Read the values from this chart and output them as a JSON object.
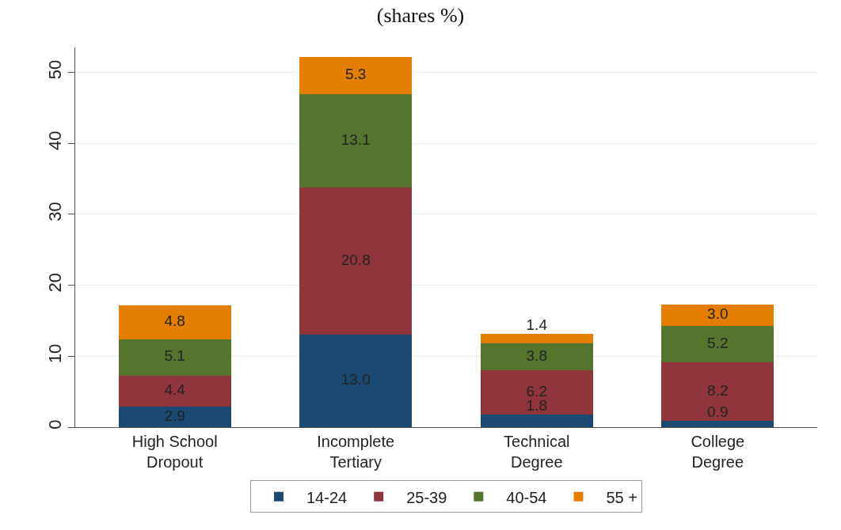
{
  "chart_data": {
    "type": "bar",
    "title": "(shares %)",
    "stacked": true,
    "grid": "y",
    "legend": "bottom",
    "categories": [
      "High School Dropout",
      "Incomplete Tertiary",
      "Technical Degree",
      "College Degree"
    ],
    "ylim": [
      0,
      53.5
    ],
    "yticks": [
      0,
      10,
      20,
      30,
      40,
      50
    ],
    "series": [
      {
        "name": "14-24",
        "color": "#1a4a72",
        "values": [
          2.9,
          13.0,
          1.8,
          0.9
        ],
        "value_labels": [
          "2.9",
          "13.0",
          "1.8",
          "0.9"
        ]
      },
      {
        "name": "25-39",
        "color": "#90353b",
        "values": [
          4.4,
          20.8,
          6.2,
          8.2
        ],
        "value_labels": [
          "4.4",
          "20.8",
          "6.2",
          "8.2"
        ]
      },
      {
        "name": "40-54",
        "color": "#55752f",
        "values": [
          5.1,
          13.1,
          3.8,
          5.2
        ],
        "value_labels": [
          "5.1",
          "13.1",
          "3.8",
          "5.2"
        ]
      },
      {
        "name": "55 +",
        "color": "#e37e00",
        "values": [
          4.8,
          5.3,
          1.4,
          3.0
        ],
        "value_labels": [
          "4.8",
          "5.3",
          "1.4",
          "3.0"
        ]
      }
    ]
  }
}
